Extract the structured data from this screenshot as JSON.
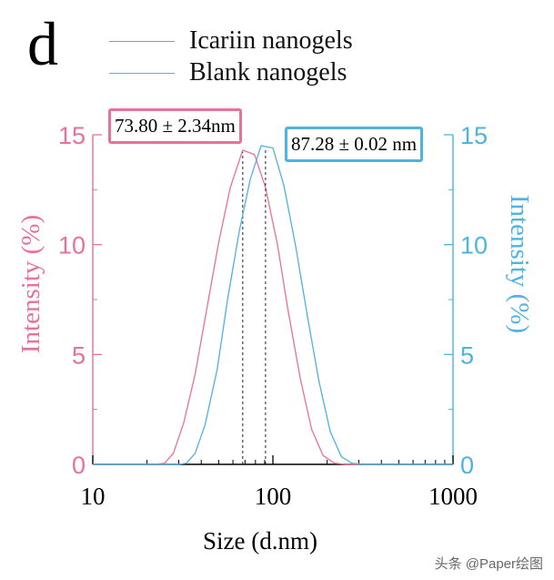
{
  "panel_label": "d",
  "colors": {
    "icariin": "#E8709A",
    "blank": "#4DB3E0",
    "axis_text": "#000000"
  },
  "chart_data": {
    "type": "line",
    "xscale": "log",
    "xlabel": "Size (d.nm)",
    "ylabel_left": "Intensity (%)",
    "ylabel_right": "Intensity (%)",
    "xlim": [
      10,
      1000
    ],
    "ylim": [
      0,
      15
    ],
    "x_ticks": [
      10,
      100,
      1000
    ],
    "x_tick_labels": [
      "10",
      "100",
      "1000"
    ],
    "y_ticks": [
      0,
      5,
      10,
      15
    ],
    "y_tick_labels": [
      "0",
      "5",
      "10",
      "15"
    ],
    "series": [
      {
        "name": "Icariin nanogels",
        "color": "#E8709A",
        "x": [
          10,
          18,
          22,
          25,
          28,
          32,
          37,
          43,
          50,
          58,
          68,
          79,
          91,
          106,
          122,
          142,
          164,
          190,
          220,
          255,
          300,
          1000
        ],
        "values": [
          0,
          0,
          0,
          0.05,
          0.5,
          1.9,
          4.1,
          7.1,
          10.1,
          12.6,
          14.3,
          14.1,
          12.6,
          10.0,
          6.9,
          3.9,
          1.6,
          0.4,
          0.05,
          0,
          0,
          0
        ],
        "peak_label": "73.80 ± 2.34nm",
        "peak_x": 68
      },
      {
        "name": "Blank nanogels",
        "color": "#4DB3E0",
        "x": [
          10,
          25,
          30,
          33,
          37,
          42,
          49,
          56,
          65,
          75,
          86,
          100,
          115,
          134,
          155,
          180,
          208,
          240,
          275,
          320,
          1000
        ],
        "values": [
          0,
          0,
          0,
          0.05,
          0.5,
          1.8,
          4.3,
          7.5,
          10.6,
          13.0,
          14.5,
          14.4,
          12.7,
          9.9,
          6.8,
          3.8,
          1.5,
          0.35,
          0.05,
          0,
          0
        ],
        "peak_label": "87.28 ± 0.02 nm",
        "peak_x": 91
      }
    ],
    "legend": [
      "Icariin nanogels",
      "Blank nanogels"
    ],
    "legend_position": "top"
  },
  "watermark": "头条 @Paper绘图"
}
